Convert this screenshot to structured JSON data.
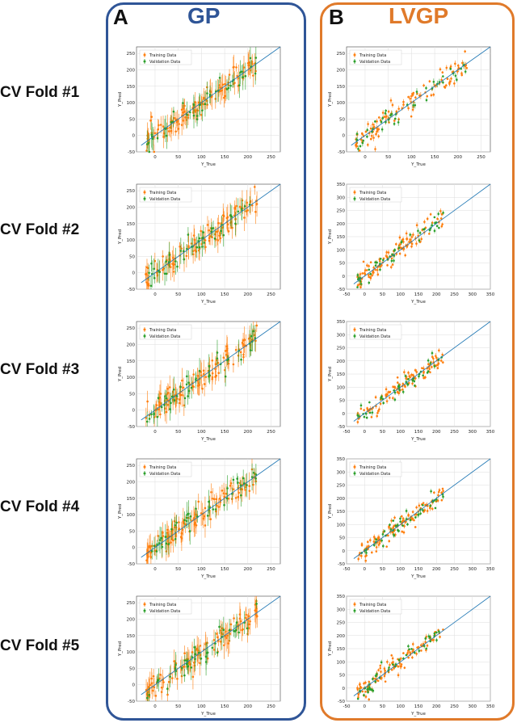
{
  "panels": [
    {
      "letter": "A",
      "title": "GP",
      "color": "#2f5597"
    },
    {
      "letter": "B",
      "title": "LVGP",
      "color": "#e07a2a"
    }
  ],
  "fold_labels": [
    "CV Fold #1",
    "CV Fold #2",
    "CV Fold #3",
    "CV Fold #4",
    "CV Fold #5"
  ],
  "colors": {
    "training": "#ff7f0e",
    "validation": "#2ca02c",
    "identity_line": "#1f77b4"
  },
  "chart_data": [
    {
      "panel": "A",
      "fold": 1,
      "type": "scatter",
      "legend": [
        "Training Data",
        "Validation Data"
      ],
      "xlabel": "Y_True",
      "ylabel": "Y_Pred",
      "xlim": [
        -40,
        270
      ],
      "ylim": [
        -50,
        270
      ],
      "xticks": [
        0,
        50,
        100,
        150,
        200,
        250
      ],
      "yticks": [
        -50,
        0,
        50,
        100,
        150,
        200,
        250
      ],
      "grid": true,
      "legend_position": "top-left",
      "error_bars": true,
      "error_size": 30,
      "seed": 11
    },
    {
      "panel": "B",
      "fold": 1,
      "type": "scatter",
      "legend": [
        "Training Data",
        "Validation Data"
      ],
      "xlabel": "Y_True",
      "ylabel": "Y_Pred",
      "xlim": [
        -40,
        270
      ],
      "ylim": [
        -50,
        270
      ],
      "xticks": [
        0,
        50,
        100,
        150,
        200,
        250
      ],
      "yticks": [
        -50,
        0,
        50,
        100,
        150,
        200,
        250
      ],
      "grid": true,
      "legend_position": "top-left",
      "error_bars": true,
      "error_size": 8,
      "seed": 12
    },
    {
      "panel": "A",
      "fold": 2,
      "type": "scatter",
      "legend": [
        "Training Data",
        "Validation Data"
      ],
      "xlabel": "Y_True",
      "ylabel": "Y_Pred",
      "xlim": [
        -40,
        270
      ],
      "ylim": [
        -50,
        270
      ],
      "xticks": [
        0,
        50,
        100,
        150,
        200,
        250
      ],
      "yticks": [
        -50,
        0,
        50,
        100,
        150,
        200,
        250
      ],
      "grid": true,
      "legend_position": "top-left",
      "error_bars": true,
      "error_size": 30,
      "seed": 21
    },
    {
      "panel": "B",
      "fold": 2,
      "type": "scatter",
      "legend": [
        "Training Data",
        "Validation Data"
      ],
      "xlabel": "Y_True",
      "ylabel": "Y_Pred",
      "xlim": [
        -50,
        350
      ],
      "ylim": [
        -50,
        350
      ],
      "xticks": [
        -50,
        0,
        50,
        100,
        150,
        200,
        250,
        300,
        350
      ],
      "yticks": [
        -50,
        0,
        50,
        100,
        150,
        200,
        250,
        300,
        350
      ],
      "grid": true,
      "legend_position": "top-left",
      "error_bars": true,
      "error_size": 8,
      "seed": 22
    },
    {
      "panel": "A",
      "fold": 3,
      "type": "scatter",
      "legend": [
        "Training Data",
        "Validation Data"
      ],
      "xlabel": "Y_True",
      "ylabel": "Y_Pred",
      "xlim": [
        -40,
        270
      ],
      "ylim": [
        -50,
        270
      ],
      "xticks": [
        0,
        50,
        100,
        150,
        200,
        250
      ],
      "yticks": [
        -50,
        0,
        50,
        100,
        150,
        200,
        250
      ],
      "grid": true,
      "legend_position": "top-left",
      "error_bars": true,
      "error_size": 30,
      "seed": 31
    },
    {
      "panel": "B",
      "fold": 3,
      "type": "scatter",
      "legend": [
        "Training Data",
        "Validation Data"
      ],
      "xlabel": "Y_True",
      "ylabel": "Y_Pred",
      "xlim": [
        -50,
        350
      ],
      "ylim": [
        -50,
        350
      ],
      "xticks": [
        -50,
        0,
        50,
        100,
        150,
        200,
        250,
        300,
        350
      ],
      "yticks": [
        -50,
        0,
        50,
        100,
        150,
        200,
        250,
        300,
        350
      ],
      "grid": true,
      "legend_position": "top-left",
      "error_bars": true,
      "error_size": 8,
      "seed": 32
    },
    {
      "panel": "A",
      "fold": 4,
      "type": "scatter",
      "legend": [
        "Training Data",
        "Validation Data"
      ],
      "xlabel": "Y_True",
      "ylabel": "Y_Pred",
      "xlim": [
        -40,
        270
      ],
      "ylim": [
        -50,
        270
      ],
      "xticks": [
        0,
        50,
        100,
        150,
        200,
        250
      ],
      "yticks": [
        -50,
        0,
        50,
        100,
        150,
        200,
        250
      ],
      "grid": true,
      "legend_position": "top-left",
      "error_bars": true,
      "error_size": 30,
      "seed": 41
    },
    {
      "panel": "B",
      "fold": 4,
      "type": "scatter",
      "legend": [
        "Training Data",
        "Validation Data"
      ],
      "xlabel": "Y_True",
      "ylabel": "Y_Pred",
      "xlim": [
        -50,
        350
      ],
      "ylim": [
        -50,
        350
      ],
      "xticks": [
        -50,
        0,
        50,
        100,
        150,
        200,
        250,
        300,
        350
      ],
      "yticks": [
        -50,
        0,
        50,
        100,
        150,
        200,
        250,
        300,
        350
      ],
      "grid": true,
      "legend_position": "top-left",
      "error_bars": true,
      "error_size": 8,
      "seed": 42
    },
    {
      "panel": "A",
      "fold": 5,
      "type": "scatter",
      "legend": [
        "Training Data",
        "Validation Data"
      ],
      "xlabel": "Y_True",
      "ylabel": "Y_Pred",
      "xlim": [
        -40,
        270
      ],
      "ylim": [
        -50,
        270
      ],
      "xticks": [
        0,
        50,
        100,
        150,
        200,
        250
      ],
      "yticks": [
        -50,
        0,
        50,
        100,
        150,
        200,
        250
      ],
      "grid": true,
      "legend_position": "top-left",
      "error_bars": true,
      "error_size": 30,
      "seed": 51
    },
    {
      "panel": "B",
      "fold": 5,
      "type": "scatter",
      "legend": [
        "Training Data",
        "Validation Data"
      ],
      "xlabel": "Y_True",
      "ylabel": "Y_Pred",
      "xlim": [
        -50,
        350
      ],
      "ylim": [
        -50,
        350
      ],
      "xticks": [
        -50,
        0,
        50,
        100,
        150,
        200,
        250,
        300,
        350
      ],
      "yticks": [
        -50,
        0,
        50,
        100,
        150,
        200,
        250,
        300,
        350
      ],
      "grid": true,
      "legend_position": "top-left",
      "error_bars": true,
      "error_size": 8,
      "seed": 52
    }
  ]
}
